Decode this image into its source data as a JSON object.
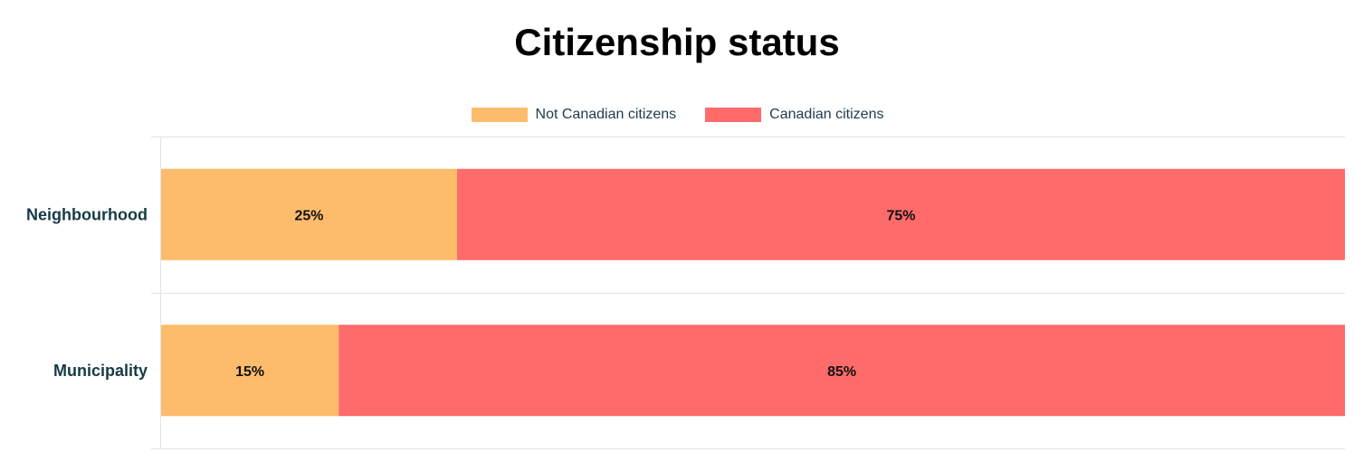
{
  "chart_data": {
    "type": "bar",
    "orientation": "horizontal",
    "stacked": true,
    "title": "Citizenship status",
    "categories": [
      "Neighbourhood",
      "Municipality"
    ],
    "series": [
      {
        "name": "Not Canadian citizens",
        "color": "#fdbc6b",
        "values": [
          25,
          15
        ],
        "labels": [
          "25%",
          "15%"
        ]
      },
      {
        "name": "Canadian citizens",
        "color": "#ff6b6b",
        "values": [
          75,
          85
        ],
        "labels": [
          "75%",
          "85%"
        ]
      }
    ],
    "xlim": [
      0,
      100
    ],
    "grid": true,
    "legend": "top-center"
  }
}
